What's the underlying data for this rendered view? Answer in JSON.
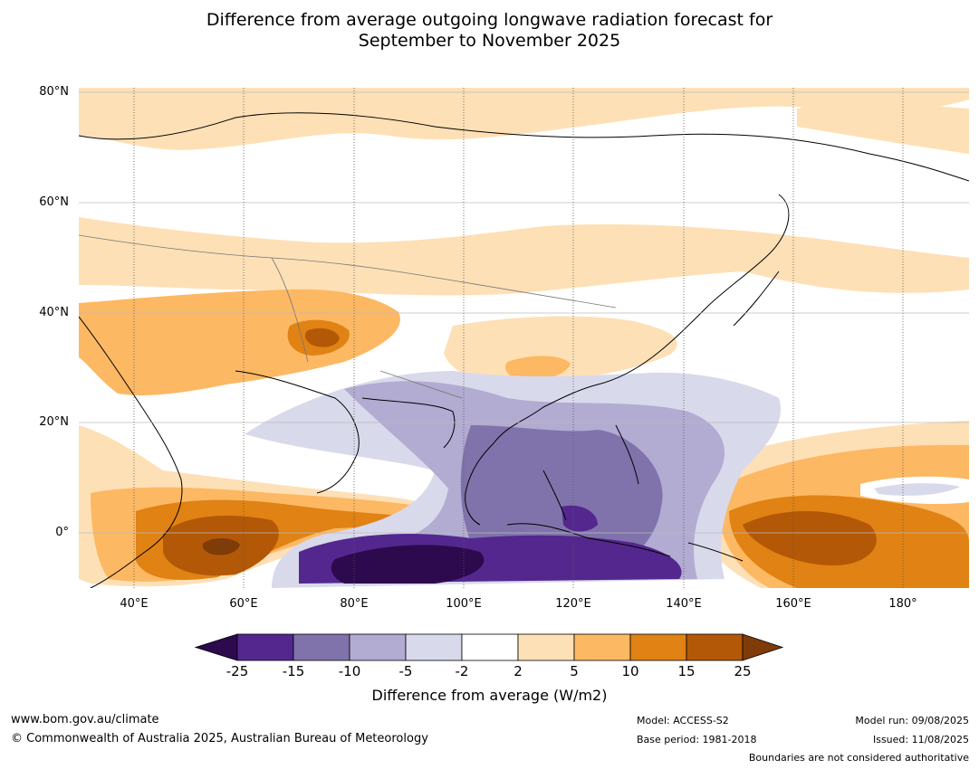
{
  "title_line1": "Difference from average outgoing longwave radiation forecast for",
  "title_line2": "September to November 2025",
  "map": {
    "lat_labels": [
      "80°N",
      "60°N",
      "40°N",
      "20°N",
      "0°"
    ],
    "lon_labels": [
      "40°E",
      "60°E",
      "80°E",
      "100°E",
      "120°E",
      "140°E",
      "160°E",
      "180°"
    ],
    "extent": {
      "lon_min": 30,
      "lon_max": 192,
      "lat_min": -10,
      "lat_max": 81
    },
    "regions": [
      {
        "name": "north-eurasia-band",
        "category": "2 to 5"
      },
      {
        "name": "central-asia-band",
        "category": "5 to 10"
      },
      {
        "name": "tibet-core",
        "category": "15 to 25"
      },
      {
        "name": "indian-ocean-equatorial",
        "category": "10 to 25"
      },
      {
        "name": "west-pacific-equatorial",
        "category": "10 to 15"
      },
      {
        "name": "maritime-continent",
        "category": "-25 to -5"
      }
    ]
  },
  "colorbar": {
    "ticks": [
      "-25",
      "-15",
      "-10",
      "-5",
      "-2",
      "2",
      "5",
      "10",
      "15",
      "25"
    ],
    "colors": [
      "#2d0a4e",
      "#54278f",
      "#8073ac",
      "#b2abd2",
      "#d8daeb",
      "#ffffff",
      "#fee0b6",
      "#fdb863",
      "#e08214",
      "#b35806",
      "#7f3b08"
    ],
    "label": "Difference from average (W/m2)"
  },
  "footer": {
    "website": "www.bom.gov.au/climate",
    "copyright": "© Commonwealth of Australia 2025, Australian Bureau of Meteorology",
    "model": "Model: ACCESS-S2",
    "base_period": "Base period: 1981-2018",
    "model_run": "Model run: 09/08/2025",
    "issued": "Issued: 11/08/2025",
    "disclaimer": "Boundaries are not considered authoritative"
  }
}
